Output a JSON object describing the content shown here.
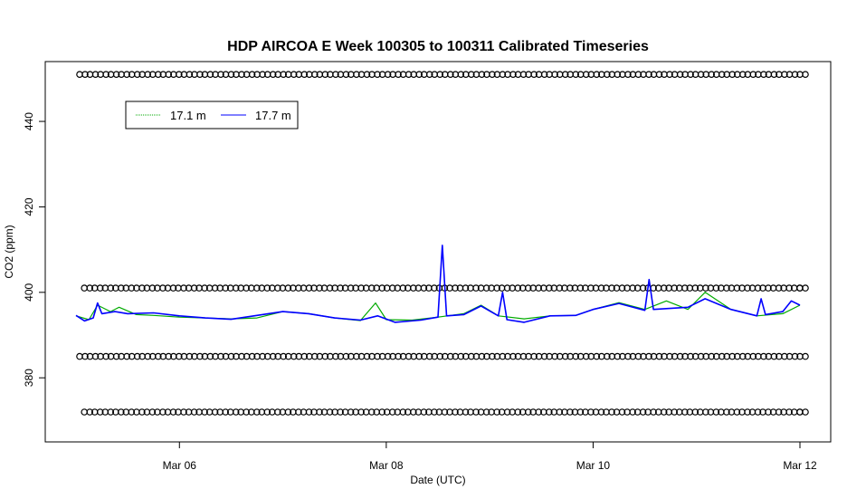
{
  "chart_data": {
    "type": "line",
    "title": "HDP AIRCOA E  Week 100305 to 100311  Calibrated Timeseries",
    "xlabel": "Date (UTC)",
    "ylabel": "CO2 (ppm)",
    "xlim": [
      "2010-03-05T00:00",
      "2010-03-12T00:00"
    ],
    "ylim": [
      365,
      454
    ],
    "x_ticks": [
      {
        "label": "Mar 06",
        "x": "2010-03-06T00:00"
      },
      {
        "label": "Mar 08",
        "x": "2010-03-08T00:00"
      },
      {
        "label": "Mar 10",
        "x": "2010-03-10T00:00"
      },
      {
        "label": "Mar 12",
        "x": "2010-03-12T00:00"
      }
    ],
    "y_ticks": [
      380,
      400,
      420,
      440
    ],
    "grid": false,
    "legend_position": "top-left",
    "colors": {
      "series_17_1": "#00aa00",
      "series_17_7": "#0000ff",
      "standards": "#000000"
    },
    "series": [
      {
        "name": "17.1 m",
        "points": [
          [
            "2010-03-05T00:00",
            394.5
          ],
          [
            "2010-03-05T03:00",
            393.6
          ],
          [
            "2010-03-05T05:00",
            397.0
          ],
          [
            "2010-03-05T08:00",
            395.5
          ],
          [
            "2010-03-05T10:00",
            396.5
          ],
          [
            "2010-03-05T14:00",
            394.8
          ],
          [
            "2010-03-05T18:00",
            394.6
          ],
          [
            "2010-03-06T00:00",
            394.2
          ],
          [
            "2010-03-06T06:00",
            394.0
          ],
          [
            "2010-03-06T12:00",
            393.8
          ],
          [
            "2010-03-06T18:00",
            394.0
          ],
          [
            "2010-03-07T00:00",
            395.5
          ],
          [
            "2010-03-07T06:00",
            395.0
          ],
          [
            "2010-03-07T12:00",
            394.0
          ],
          [
            "2010-03-07T18:00",
            393.4
          ],
          [
            "2010-03-07T21:30",
            397.5
          ],
          [
            "2010-03-08T00:00",
            393.6
          ],
          [
            "2010-03-08T06:00",
            393.5
          ],
          [
            "2010-03-08T12:00",
            394.2
          ],
          [
            "2010-03-08T18:00",
            395.0
          ],
          [
            "2010-03-08T22:00",
            397.0
          ],
          [
            "2010-03-09T02:00",
            394.5
          ],
          [
            "2010-03-09T08:00",
            393.8
          ],
          [
            "2010-03-09T14:00",
            394.5
          ],
          [
            "2010-03-09T20:00",
            394.6
          ],
          [
            "2010-03-10T00:00",
            396.0
          ],
          [
            "2010-03-10T06:00",
            397.6
          ],
          [
            "2010-03-10T12:00",
            396.0
          ],
          [
            "2010-03-10T17:00",
            398.0
          ],
          [
            "2010-03-10T22:00",
            396.0
          ],
          [
            "2010-03-11T02:00",
            400.0
          ],
          [
            "2010-03-11T08:00",
            396.0
          ],
          [
            "2010-03-11T14:00",
            394.5
          ],
          [
            "2010-03-11T20:00",
            395.0
          ],
          [
            "2010-03-12T00:00",
            397.0
          ]
        ]
      },
      {
        "name": "17.7 m",
        "points": [
          [
            "2010-03-05T00:00",
            394.6
          ],
          [
            "2010-03-05T02:00",
            393.3
          ],
          [
            "2010-03-05T04:00",
            394.0
          ],
          [
            "2010-03-05T05:00",
            397.5
          ],
          [
            "2010-03-05T06:00",
            395.0
          ],
          [
            "2010-03-05T09:00",
            395.5
          ],
          [
            "2010-03-05T12:00",
            395.0
          ],
          [
            "2010-03-05T18:00",
            395.2
          ],
          [
            "2010-03-06T00:00",
            394.5
          ],
          [
            "2010-03-06T06:00",
            394.0
          ],
          [
            "2010-03-06T12:00",
            393.7
          ],
          [
            "2010-03-06T18:00",
            394.6
          ],
          [
            "2010-03-07T00:00",
            395.5
          ],
          [
            "2010-03-07T06:00",
            395.0
          ],
          [
            "2010-03-07T12:00",
            394.0
          ],
          [
            "2010-03-07T18:00",
            393.5
          ],
          [
            "2010-03-07T22:00",
            394.5
          ],
          [
            "2010-03-08T02:00",
            393.0
          ],
          [
            "2010-03-08T08:00",
            393.5
          ],
          [
            "2010-03-08T12:00",
            394.2
          ],
          [
            "2010-03-08T13:00",
            411.0
          ],
          [
            "2010-03-08T14:00",
            394.5
          ],
          [
            "2010-03-08T18:00",
            394.8
          ],
          [
            "2010-03-08T22:00",
            396.8
          ],
          [
            "2010-03-09T02:00",
            394.5
          ],
          [
            "2010-03-09T03:00",
            400.0
          ],
          [
            "2010-03-09T04:00",
            393.6
          ],
          [
            "2010-03-09T08:00",
            393.0
          ],
          [
            "2010-03-09T14:00",
            394.5
          ],
          [
            "2010-03-09T20:00",
            394.6
          ],
          [
            "2010-03-10T00:00",
            396.0
          ],
          [
            "2010-03-10T06:00",
            397.4
          ],
          [
            "2010-03-10T12:00",
            395.8
          ],
          [
            "2010-03-10T13:00",
            403.0
          ],
          [
            "2010-03-10T14:00",
            396.0
          ],
          [
            "2010-03-10T22:00",
            396.5
          ],
          [
            "2010-03-11T02:00",
            398.5
          ],
          [
            "2010-03-11T08:00",
            396.0
          ],
          [
            "2010-03-11T14:00",
            394.5
          ],
          [
            "2010-03-11T15:00",
            398.5
          ],
          [
            "2010-03-11T16:00",
            394.8
          ],
          [
            "2010-03-11T20:00",
            395.5
          ],
          [
            "2010-03-11T22:00",
            398.0
          ],
          [
            "2010-03-12T00:00",
            397.0
          ]
        ]
      }
    ],
    "standard_levels": [
      451,
      401,
      385,
      372
    ],
    "standard_markers_per_row": 70,
    "legend": [
      {
        "label": "17.1 m",
        "color": "#00aa00"
      },
      {
        "label": "17.7 m",
        "color": "#0000ff"
      }
    ]
  }
}
